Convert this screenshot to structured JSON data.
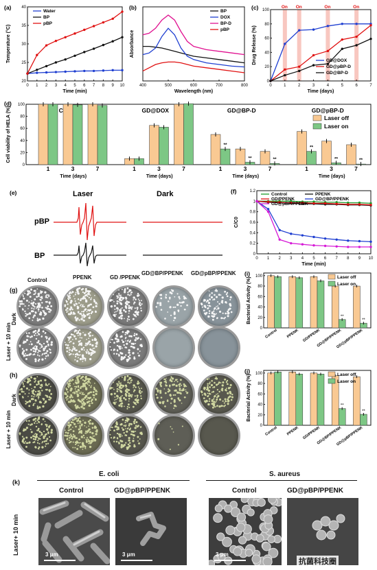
{
  "panels": {
    "a": "(a)",
    "b": "(b)",
    "c": "(c)",
    "d": "(d)",
    "e": "(e)",
    "f": "(f)",
    "g": "(g)",
    "h": "(h)",
    "i": "(i)",
    "j": "(j)",
    "k": "(k)"
  },
  "chart_data": [
    {
      "id": "a",
      "type": "line",
      "xlabel": "Time (min)",
      "ylabel": "Temperature (°C)",
      "xlim": [
        0,
        10
      ],
      "ylim": [
        20,
        40
      ],
      "xticks": [
        0,
        1,
        2,
        3,
        4,
        5,
        6,
        7,
        8,
        9,
        10
      ],
      "yticks": [
        20,
        25,
        30,
        35,
        40
      ],
      "x": [
        0,
        1,
        2,
        3,
        4,
        5,
        6,
        7,
        8,
        9,
        10
      ],
      "series": [
        {
          "name": "Water",
          "color": "#1f3fd1",
          "values": [
            22,
            22.2,
            22.3,
            22.4,
            22.5,
            22.6,
            22.7,
            22.7,
            22.8,
            22.9,
            22.9
          ]
        },
        {
          "name": "BP",
          "color": "#111111",
          "values": [
            22,
            23,
            24,
            25,
            25.8,
            26.8,
            27.8,
            28.7,
            29.7,
            30.7,
            31.8
          ]
        },
        {
          "name": "pBP",
          "color": "#e01010",
          "values": [
            22,
            27,
            29.6,
            30.8,
            31.8,
            32.8,
            33.8,
            34.8,
            35.8,
            36.8,
            38.7
          ]
        }
      ]
    },
    {
      "id": "b",
      "type": "line",
      "xlabel": "Wavelength (nm)",
      "ylabel": "Absorbance",
      "xlim": [
        400,
        800
      ],
      "ylim": [
        0,
        0.45
      ],
      "xticks": [
        400,
        500,
        600,
        700,
        800
      ],
      "x": [
        400,
        425,
        450,
        475,
        500,
        525,
        550,
        575,
        600,
        650,
        700,
        750,
        800
      ],
      "series": [
        {
          "name": "BP",
          "color": "#111111",
          "values": [
            0.21,
            0.21,
            0.205,
            0.2,
            0.19,
            0.18,
            0.17,
            0.16,
            0.15,
            0.14,
            0.13,
            0.12,
            0.11
          ]
        },
        {
          "name": "DOX",
          "color": "#1f3fd1",
          "values": [
            0.16,
            0.17,
            0.2,
            0.27,
            0.32,
            0.28,
            0.2,
            0.15,
            0.13,
            0.11,
            0.1,
            0.09,
            0.085
          ]
        },
        {
          "name": "BP-D",
          "color": "#e01090",
          "values": [
            0.28,
            0.29,
            0.32,
            0.37,
            0.4,
            0.37,
            0.3,
            0.24,
            0.21,
            0.19,
            0.18,
            0.17,
            0.16
          ]
        },
        {
          "name": "pBP",
          "color": "#e01010",
          "values": [
            0.06,
            0.08,
            0.1,
            0.11,
            0.115,
            0.115,
            0.11,
            0.1,
            0.09,
            0.08,
            0.07,
            0.06,
            0.05
          ]
        }
      ]
    },
    {
      "id": "c",
      "type": "line",
      "xlabel": "Time (days)",
      "ylabel": "Drug Release (%)",
      "xlim": [
        0,
        7
      ],
      "ylim": [
        0,
        100
      ],
      "xticks": [
        0,
        1,
        2,
        3,
        4,
        5,
        6,
        7
      ],
      "yticks": [
        0,
        20,
        40,
        60,
        80,
        100
      ],
      "on_label": "On",
      "on_days": [
        1,
        2,
        4,
        6
      ],
      "x": [
        0,
        1,
        2,
        3,
        4,
        5,
        6,
        7
      ],
      "series": [
        {
          "name": "GD@DOX",
          "color": "#1f3fd1",
          "values": [
            0,
            52,
            71,
            72,
            77,
            80,
            80,
            80
          ]
        },
        {
          "name": "GD@pBP-D",
          "color": "#e01010",
          "values": [
            0,
            16,
            20,
            36,
            42,
            58,
            62,
            78
          ]
        },
        {
          "name": "GD@BP-D",
          "color": "#111111",
          "values": [
            0,
            8,
            14,
            22,
            24,
            45,
            50,
            59
          ]
        }
      ]
    },
    {
      "id": "d",
      "type": "bar",
      "ylabel": "Cell viability of HELA (%)",
      "ylim": [
        0,
        100
      ],
      "yticks": [
        0,
        20,
        40,
        60,
        80,
        100
      ],
      "groups": [
        {
          "title": "Control",
          "categories": [
            "1",
            "3",
            "7"
          ],
          "xlabel": "Time (days)",
          "laser_off": [
            100,
            100,
            100
          ],
          "laser_on": [
            100,
            99,
            98
          ],
          "stars": [
            "",
            "",
            ""
          ]
        },
        {
          "title": "GD@DOX",
          "categories": [
            "1",
            "3",
            "7"
          ],
          "xlabel": "Time (days)",
          "laser_off": [
            10,
            65,
            100
          ],
          "laser_on": [
            10,
            62,
            101
          ],
          "stars": [
            "",
            "",
            ""
          ]
        },
        {
          "title": "GD@BP-D",
          "categories": [
            "1",
            "3",
            "7"
          ],
          "xlabel": "Time (days)",
          "laser_off": [
            50,
            26,
            22
          ],
          "laser_on": [
            26,
            4,
            2
          ],
          "stars": [
            "**",
            "**",
            "**"
          ]
        },
        {
          "title": "GD@pBP-D",
          "categories": [
            "1",
            "3",
            "7"
          ],
          "xlabel": "Time (days)",
          "laser_off": [
            55,
            39,
            33
          ],
          "laser_on": [
            22,
            3,
            1
          ],
          "stars": [
            "**",
            "**",
            "**"
          ]
        }
      ],
      "legend": [
        "Laser off",
        "Laser on"
      ],
      "colors": {
        "off": "#f9c993",
        "on": "#7dc785"
      }
    },
    {
      "id": "f",
      "type": "line",
      "xlabel": "Time (min)",
      "ylabel": "C/C0",
      "xlim": [
        0,
        10
      ],
      "ylim": [
        0,
        1.2
      ],
      "xticks": [
        0,
        1,
        2,
        3,
        4,
        5,
        6,
        7,
        8,
        9,
        10
      ],
      "yticks": [
        0,
        0.2,
        0.4,
        0.6,
        0.8,
        1.0,
        1.2
      ],
      "x": [
        0,
        1,
        2,
        3,
        4,
        5,
        6,
        7,
        8,
        9,
        10
      ],
      "series": [
        {
          "name": "Control",
          "color": "#1a9a2a",
          "values": [
            1,
            1,
            1,
            1,
            0.99,
            0.99,
            0.98,
            0.98,
            0.97,
            0.97,
            0.96
          ]
        },
        {
          "name": "PPENK",
          "color": "#111111",
          "values": [
            1,
            0.98,
            0.97,
            0.96,
            0.95,
            0.95,
            0.94,
            0.94,
            0.93,
            0.93,
            0.92
          ]
        },
        {
          "name": "GD/PPENK",
          "color": "#e01010",
          "values": [
            1,
            0.99,
            0.98,
            0.97,
            0.97,
            0.96,
            0.96,
            0.95,
            0.94,
            0.94,
            0.93
          ]
        },
        {
          "name": "GD@BP/PPENK",
          "color": "#1f3fd1",
          "values": [
            1,
            0.85,
            0.45,
            0.38,
            0.35,
            0.32,
            0.29,
            0.27,
            0.25,
            0.24,
            0.23
          ]
        },
        {
          "name": "GD@pBP/PPENK",
          "color": "#d61ad6",
          "values": [
            1,
            0.8,
            0.27,
            0.2,
            0.18,
            0.16,
            0.15,
            0.14,
            0.13,
            0.13,
            0.13
          ]
        }
      ]
    },
    {
      "id": "i",
      "type": "bar",
      "ylabel": "Bacterial Activity (%)",
      "ylim": [
        0,
        100
      ],
      "yticks": [
        0,
        20,
        40,
        60,
        80,
        100
      ],
      "categories": [
        "Control",
        "PPENK",
        "GD/PPENK",
        "GD@BP/PPENK",
        "GD@pBP/PPENK"
      ],
      "laser_off": [
        100,
        98,
        98,
        80,
        80
      ],
      "laser_on": [
        98,
        96,
        90,
        16,
        9
      ],
      "stars": [
        "",
        "",
        "",
        "**",
        "**"
      ],
      "legend": [
        "Laser off",
        "Laser on"
      ]
    },
    {
      "id": "j",
      "type": "bar",
      "ylabel": "Bacterial Activity (%)",
      "ylim": [
        0,
        100
      ],
      "yticks": [
        0,
        20,
        40,
        60,
        80,
        100
      ],
      "categories": [
        "Control",
        "PPENK",
        "GD/PPENK",
        "GD@BP/PPENK",
        "GD@pBP/PPENK"
      ],
      "laser_off": [
        100,
        102,
        100,
        95,
        93
      ],
      "laser_on": [
        102,
        98,
        98,
        32,
        21
      ],
      "stars": [
        "",
        "",
        "",
        "**",
        "**"
      ],
      "legend": [
        "Laser off",
        "Laser on"
      ]
    }
  ],
  "epr": {
    "laser": "Laser",
    "dark": "Dark",
    "pbp": "pBP",
    "bp": "BP"
  },
  "g": {
    "columns": [
      "Control",
      "PPENK",
      "GD /PPENK",
      "GD@BP/PPENK",
      "GD@pBP/PPENK"
    ],
    "rows": [
      "Dark",
      "Laser + 10 min"
    ]
  },
  "h": {
    "rows": [
      "Dark",
      "Laser + 10 min"
    ]
  },
  "k": {
    "ecoli": "E. coli",
    "saureus": "S. aureus",
    "control": "Control",
    "treated": "GD@pBP/PPENK",
    "row": "Laser+ 10 min",
    "scale": "3 μm"
  },
  "watermark": "抗菌科技圈"
}
